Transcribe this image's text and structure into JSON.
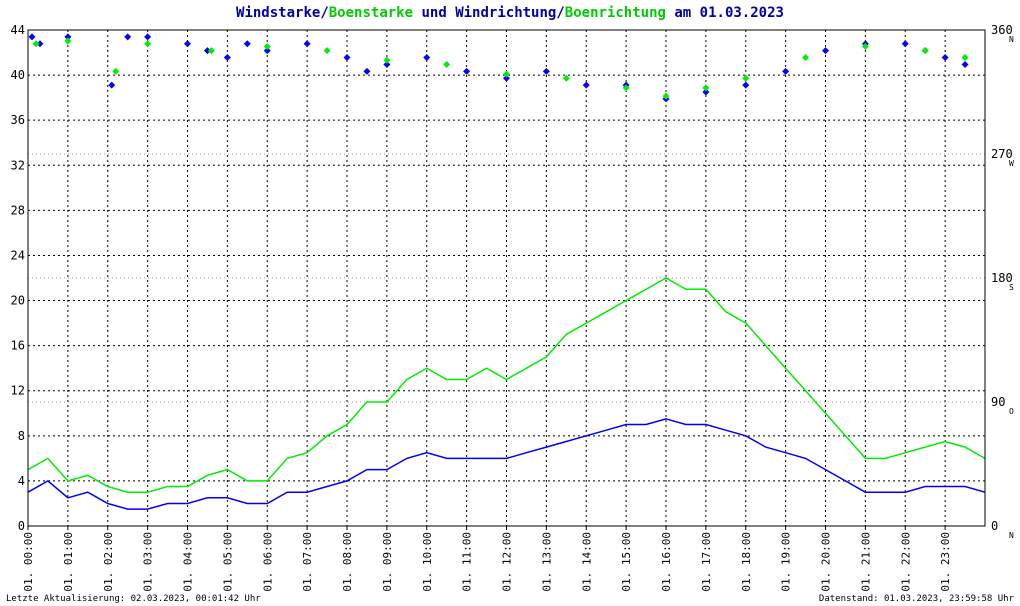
{
  "chart_data": {
    "type": "line",
    "title": {
      "part1": "Windstarke",
      "sep1": "/",
      "part2": "Boenstarke",
      "part3": " und ",
      "part4": "Windrichtung",
      "sep2": "/",
      "part5": "Boenrichtung",
      "part6": " am 01.03.2023"
    },
    "colors": {
      "wind": "#0000ff",
      "gust": "#00ee00",
      "title_dark": "#0000aa",
      "title_green": "#00cc00"
    },
    "ylim_left": [
      0,
      44
    ],
    "yticks_left": [
      "0",
      "4",
      "8",
      "12",
      "16",
      "20",
      "24",
      "28",
      "32",
      "36",
      "40",
      "44"
    ],
    "ylim_right": [
      0,
      360
    ],
    "yticks_right": [
      {
        "value": 0,
        "label": "0",
        "dir": "N"
      },
      {
        "value": 90,
        "label": "90",
        "dir": "O"
      },
      {
        "value": 180,
        "label": "180",
        "dir": "S"
      },
      {
        "value": 270,
        "label": "270",
        "dir": "W"
      },
      {
        "value": 360,
        "label": "360",
        "dir": "N"
      }
    ],
    "xlim": [
      0,
      24
    ],
    "xticks": [
      "01. 00:00",
      "01. 01:00",
      "01. 02:00",
      "01. 03:00",
      "01. 04:00",
      "01. 05:00",
      "01. 06:00",
      "01. 07:00",
      "01. 08:00",
      "01. 09:00",
      "01. 10:00",
      "01. 11:00",
      "01. 12:00",
      "01. 13:00",
      "01. 14:00",
      "01. 15:00",
      "01. 16:00",
      "01. 17:00",
      "01. 18:00",
      "01. 19:00",
      "01. 20:00",
      "01. 21:00",
      "01. 22:00",
      "01. 23:00"
    ],
    "grid": true,
    "series": [
      {
        "name": "Windstarke",
        "kind": "line",
        "color": "#0000ff",
        "x": [
          0,
          0.5,
          1,
          1.5,
          2,
          2.5,
          3,
          3.5,
          4,
          4.5,
          5,
          5.5,
          6,
          6.5,
          7,
          7.5,
          8,
          8.5,
          9,
          9.5,
          10,
          10.5,
          11,
          11.5,
          12,
          12.5,
          13,
          13.5,
          14,
          14.5,
          15,
          15.5,
          16,
          16.5,
          17,
          17.5,
          18,
          18.5,
          19,
          19.5,
          20,
          20.5,
          21,
          21.5,
          22,
          22.5,
          23,
          23.5,
          24
        ],
        "values": [
          3,
          4,
          2.5,
          3,
          2,
          1.5,
          1.5,
          2,
          2,
          2.5,
          2.5,
          2,
          2,
          3,
          3,
          3.5,
          4,
          5,
          5,
          6,
          6.5,
          6,
          6,
          6,
          6,
          6.5,
          7,
          7.5,
          8,
          8.5,
          9,
          9,
          9.5,
          9,
          9,
          8.5,
          8,
          7,
          6.5,
          6,
          5,
          4,
          3,
          3,
          3,
          3.5,
          3.5,
          3.5,
          3
        ]
      },
      {
        "name": "Boenstarke",
        "kind": "line",
        "color": "#00ee00",
        "x": [
          0,
          0.5,
          1,
          1.5,
          2,
          2.5,
          3,
          3.5,
          4,
          4.5,
          5,
          5.5,
          6,
          6.5,
          7,
          7.5,
          8,
          8.5,
          9,
          9.5,
          10,
          10.5,
          11,
          11.5,
          12,
          12.5,
          13,
          13.5,
          14,
          14.5,
          15,
          15.5,
          16,
          16.5,
          17,
          17.5,
          18,
          18.5,
          19,
          19.5,
          20,
          20.5,
          21,
          21.5,
          22,
          22.5,
          23,
          23.5,
          24
        ],
        "values": [
          5,
          6,
          4,
          4.5,
          3.5,
          3,
          3,
          3.5,
          3.5,
          4.5,
          5,
          4,
          4,
          6,
          6.5,
          8,
          9,
          11,
          11,
          13,
          14,
          13,
          13,
          14,
          13,
          14,
          15,
          17,
          18,
          19,
          20,
          21,
          22,
          21,
          21,
          19,
          18,
          16,
          14,
          12,
          10,
          8,
          6,
          6,
          6.5,
          7,
          7.5,
          7,
          6
        ]
      },
      {
        "name": "Windrichtung",
        "kind": "scatter",
        "color": "#0000ff",
        "axis": "right",
        "x": [
          0.1,
          0.3,
          1,
          2.1,
          2.5,
          3,
          4,
          4.5,
          5,
          5.5,
          6,
          7,
          8,
          8.5,
          9,
          10,
          11,
          12,
          13,
          14,
          15,
          16,
          17,
          18,
          19,
          20,
          21,
          22,
          22.5,
          23,
          23.5
        ],
        "values": [
          355,
          350,
          355,
          320,
          355,
          355,
          350,
          345,
          340,
          350,
          345,
          350,
          340,
          330,
          335,
          340,
          330,
          325,
          330,
          320,
          320,
          310,
          315,
          320,
          330,
          345,
          350,
          350,
          345,
          340,
          335
        ]
      },
      {
        "name": "Boenrichtung",
        "kind": "scatter",
        "color": "#00ee00",
        "axis": "right",
        "x": [
          0.2,
          1,
          2.2,
          3,
          4.6,
          6,
          7.5,
          9,
          10.5,
          12,
          13.5,
          15,
          16,
          17,
          18,
          19.5,
          21,
          22.5,
          23.5
        ],
        "values": [
          350,
          352,
          330,
          350,
          345,
          348,
          345,
          338,
          335,
          328,
          325,
          318,
          312,
          318,
          325,
          340,
          348,
          345,
          340
        ]
      }
    ],
    "footer_left": "Letzte Aktualisierung: 02.03.2023, 00:01:42 Uhr",
    "footer_right": "Datenstand: 01.03.2023, 23:59:58 Uhr"
  }
}
